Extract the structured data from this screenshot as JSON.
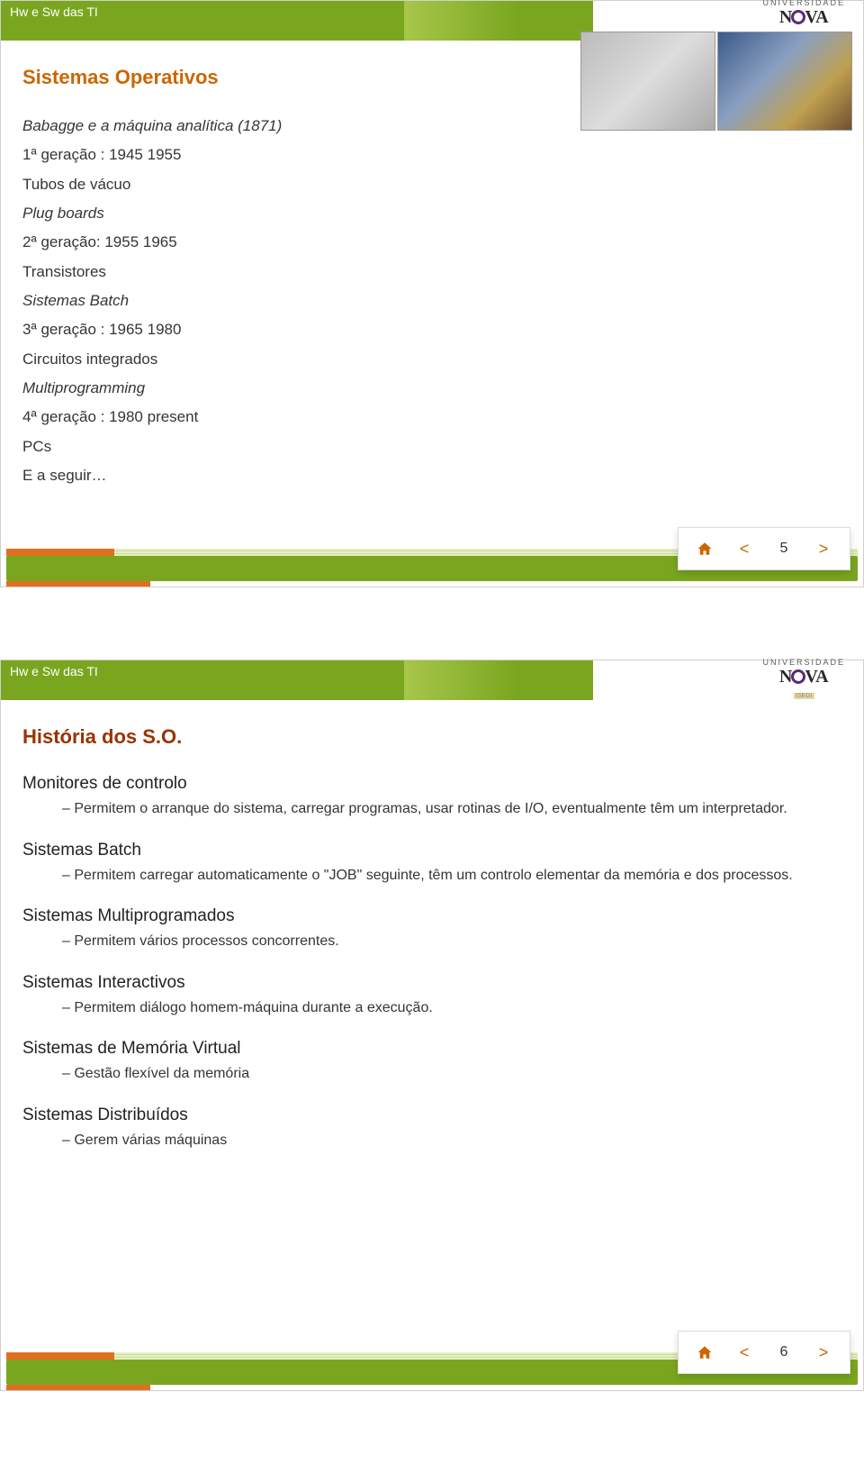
{
  "colors": {
    "banner_green": "#7aa61f",
    "accent_orange": "#cc6600",
    "title_brown": "#993300",
    "title_orange": "#cc6600",
    "footer_orange": "#e07020",
    "text": "#353535"
  },
  "header": {
    "course": "Hw e Sw das TI",
    "uni_small": "UNIVERSIDADE",
    "logo_left": "N",
    "logo_right": "VA",
    "logo_sub": "ISEGI"
  },
  "slide1": {
    "title": "Sistemas Operativos",
    "lines": [
      {
        "text": "Babagge e a máquina analítica (1871)",
        "italic": true
      },
      {
        "text": "1ª geração : 1945 1955",
        "italic": false
      },
      {
        "text": "Tubos de vácuo",
        "italic": false
      },
      {
        "text": "Plug boards",
        "italic": true
      },
      {
        "text": "2ª geração: 1955 1965",
        "italic": false
      },
      {
        "text": "Transistores",
        "italic": false
      },
      {
        "text": "Sistemas Batch",
        "italic": true
      },
      {
        "text": "3ª geração : 1965 1980",
        "italic": false
      },
      {
        "text": "Circuitos integrados",
        "italic": false
      },
      {
        "text": "Multiprogramming",
        "italic": true
      },
      {
        "text": "4ª geração : 1980 present",
        "italic": false
      },
      {
        "text": "PCs",
        "italic": false
      },
      {
        "text": "E a seguir…",
        "italic": false
      }
    ],
    "page": "5"
  },
  "slide2": {
    "title": "História dos S.O.",
    "sections": [
      {
        "head": "Monitores de controlo",
        "bullets": [
          "Permitem o arranque do sistema, carregar programas, usar rotinas de I/O, eventualmente têm um interpretador."
        ]
      },
      {
        "head": "Sistemas Batch",
        "bullets": [
          "Permitem carregar automaticamente o \"JOB\" seguinte, têm um controlo elementar da memória e dos processos."
        ]
      },
      {
        "head": "Sistemas Multiprogramados",
        "bullets": [
          "Permitem vários processos concorrentes."
        ]
      },
      {
        "head": "Sistemas Interactivos",
        "bullets": [
          "Permitem diálogo homem-máquina durante a execução."
        ]
      },
      {
        "head": "Sistemas de Memória Virtual",
        "bullets": [
          "Gestão flexível da memória"
        ]
      },
      {
        "head": "Sistemas Distribuídos",
        "bullets": [
          "Gerem várias máquinas"
        ]
      }
    ],
    "page": "6"
  },
  "nav": {
    "prev": "<",
    "next": ">"
  }
}
